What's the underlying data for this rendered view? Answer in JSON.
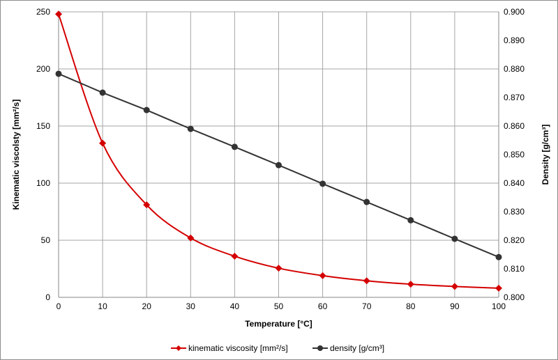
{
  "chart_data": {
    "type": "line",
    "title": "",
    "xlabel": "Temperature [°C]",
    "ylabel": "Kinematic viscolsty  [mm²/s]",
    "y2label": "Density  [g/cm³]",
    "x": [
      0,
      10,
      20,
      30,
      40,
      50,
      60,
      70,
      80,
      90,
      100
    ],
    "xlim": [
      0,
      100
    ],
    "ylim": [
      0,
      250
    ],
    "y2lim": [
      0.8,
      0.9
    ],
    "xticks": [
      "0",
      "10",
      "20",
      "30",
      "40",
      "50",
      "60",
      "70",
      "80",
      "90",
      "100"
    ],
    "yticks": [
      "0",
      "50",
      "100",
      "150",
      "200",
      "250"
    ],
    "y2ticks": [
      "0.800",
      "0.810",
      "0.820",
      "0.830",
      "0.840",
      "0.850",
      "0.860",
      "0.870",
      "0.880",
      "0.890",
      "0.900"
    ],
    "grid": true,
    "legend_position": "bottom",
    "series": [
      {
        "name": "kinematic viscosity [mm²/s]",
        "axis": "left",
        "color": "#d40000",
        "marker": "diamond",
        "smooth": true,
        "values": [
          248,
          135,
          81,
          52,
          36,
          25.5,
          19,
          14.5,
          11.5,
          9.5,
          8
        ]
      },
      {
        "name": "density [g/cm³]",
        "axis": "right",
        "color": "#333333",
        "marker": "circle",
        "smooth": false,
        "values": [
          0.8783,
          0.8717,
          0.8656,
          0.859,
          0.8527,
          0.8463,
          0.8398,
          0.8334,
          0.827,
          0.8205,
          0.8141
        ]
      }
    ]
  }
}
